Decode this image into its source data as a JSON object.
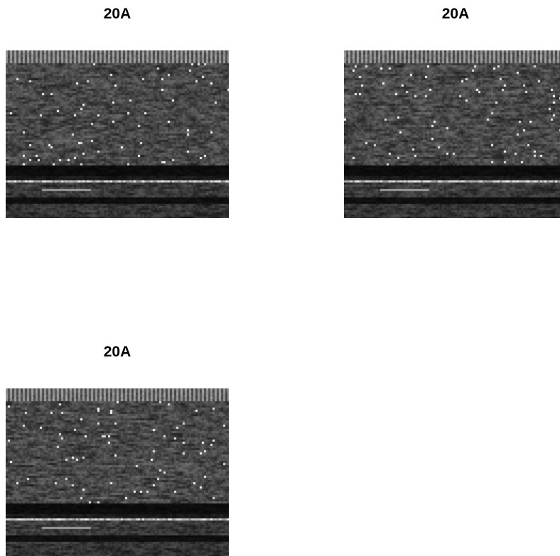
{
  "figure": {
    "panels": [
      {
        "title": "20A"
      },
      {
        "title": "20A"
      },
      {
        "title": "20A"
      }
    ]
  }
}
